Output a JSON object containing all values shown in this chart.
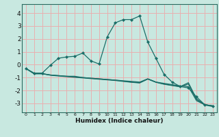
{
  "title": "",
  "xlabel": "Humidex (Indice chaleur)",
  "xlim": [
    -0.5,
    23.5
  ],
  "ylim": [
    -3.7,
    4.7
  ],
  "yticks": [
    -3,
    -2,
    -1,
    0,
    1,
    2,
    3,
    4
  ],
  "xticks": [
    0,
    1,
    2,
    3,
    4,
    5,
    6,
    7,
    8,
    9,
    10,
    11,
    12,
    13,
    14,
    15,
    16,
    17,
    18,
    19,
    20,
    21,
    22,
    23
  ],
  "bg_color": "#c8e8e0",
  "grid_color": "#e8b0b0",
  "line_color": "#1a6e68",
  "lines": [
    {
      "x": [
        0,
        1,
        2,
        3,
        4,
        5,
        6,
        7,
        8,
        9,
        10,
        11,
        12,
        13,
        14,
        15,
        16,
        17,
        18,
        19,
        20,
        21,
        22,
        23
      ],
      "y": [
        -0.3,
        -0.7,
        -0.7,
        -0.8,
        -0.85,
        -0.9,
        -0.9,
        -1.0,
        -1.05,
        -1.1,
        -1.15,
        -1.2,
        -1.25,
        -1.3,
        -1.35,
        -1.1,
        -1.35,
        -1.45,
        -1.55,
        -1.65,
        -1.7,
        -2.8,
        -3.1,
        -3.2
      ],
      "has_marker": false
    },
    {
      "x": [
        0,
        1,
        2,
        3,
        4,
        5,
        6,
        7,
        8,
        9,
        10,
        11,
        12,
        13,
        14,
        15,
        16,
        17,
        18,
        19,
        20,
        21,
        22,
        23
      ],
      "y": [
        -0.3,
        -0.7,
        -0.7,
        -0.8,
        -0.85,
        -0.9,
        -0.95,
        -1.0,
        -1.05,
        -1.1,
        -1.15,
        -1.2,
        -1.28,
        -1.35,
        -1.4,
        -1.1,
        -1.35,
        -1.5,
        -1.6,
        -1.7,
        -1.4,
        -2.65,
        -3.1,
        -3.2
      ],
      "has_marker": false
    },
    {
      "x": [
        0,
        1,
        2,
        3,
        4,
        5,
        6,
        7,
        8,
        9,
        10,
        11,
        12,
        13,
        14,
        15,
        16,
        17,
        18,
        19,
        20,
        21,
        22,
        23
      ],
      "y": [
        -0.3,
        -0.7,
        -0.7,
        -0.82,
        -0.88,
        -0.93,
        -0.98,
        -1.03,
        -1.08,
        -1.13,
        -1.18,
        -1.23,
        -1.3,
        -1.37,
        -1.42,
        -1.12,
        -1.37,
        -1.52,
        -1.62,
        -1.72,
        -1.5,
        -2.7,
        -3.13,
        -3.25
      ],
      "has_marker": false
    },
    {
      "x": [
        0,
        1,
        2,
        3,
        4,
        5,
        6,
        7,
        8,
        9,
        10,
        11,
        12,
        13,
        14,
        15,
        16,
        17,
        18,
        19,
        20,
        21,
        22,
        23
      ],
      "y": [
        -0.3,
        -0.65,
        -0.65,
        -0.05,
        0.5,
        0.6,
        0.65,
        0.9,
        0.3,
        0.05,
        2.15,
        3.25,
        3.5,
        3.5,
        3.78,
        1.75,
        0.5,
        -0.75,
        -1.35,
        -1.7,
        -1.8,
        -2.5,
        -3.1,
        -3.2
      ],
      "has_marker": true
    }
  ]
}
